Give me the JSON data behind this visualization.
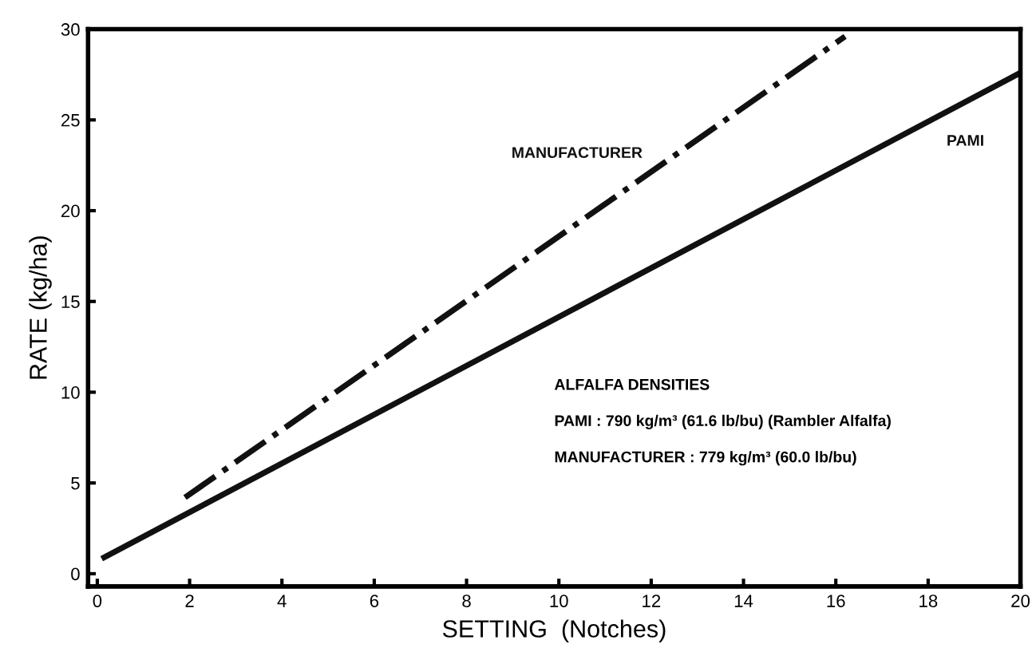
{
  "chart_data": {
    "type": "line",
    "xlabel": "SETTING  (Notches)",
    "ylabel": "RATE (kg/ha)",
    "xlim": [
      -0.2,
      20
    ],
    "ylim": [
      -0.7,
      30
    ],
    "xticks": [
      0,
      2,
      4,
      6,
      8,
      10,
      12,
      14,
      16,
      18,
      20
    ],
    "yticks": [
      0,
      5,
      10,
      15,
      20,
      25,
      30
    ],
    "grid": false,
    "legend": false,
    "series": [
      {
        "name": "MANUFACTURER",
        "color": "#111111",
        "line_style": "dashdot",
        "x": [
          1.9,
          16.2
        ],
        "values": [
          4.2,
          29.6
        ]
      },
      {
        "name": "PAMI",
        "color": "#111111",
        "line_style": "solid",
        "x": [
          0.15,
          20
        ],
        "values": [
          0.9,
          27.6
        ]
      }
    ],
    "annotations": [
      "ALFALFA DENSITIES",
      "PAMI : 790 kg/m³ (61.6 lb/bu) (Rambler Alfalfa)",
      "MANUFACTURER : 779 kg/m³ (60.0 lb/bu)"
    ]
  }
}
